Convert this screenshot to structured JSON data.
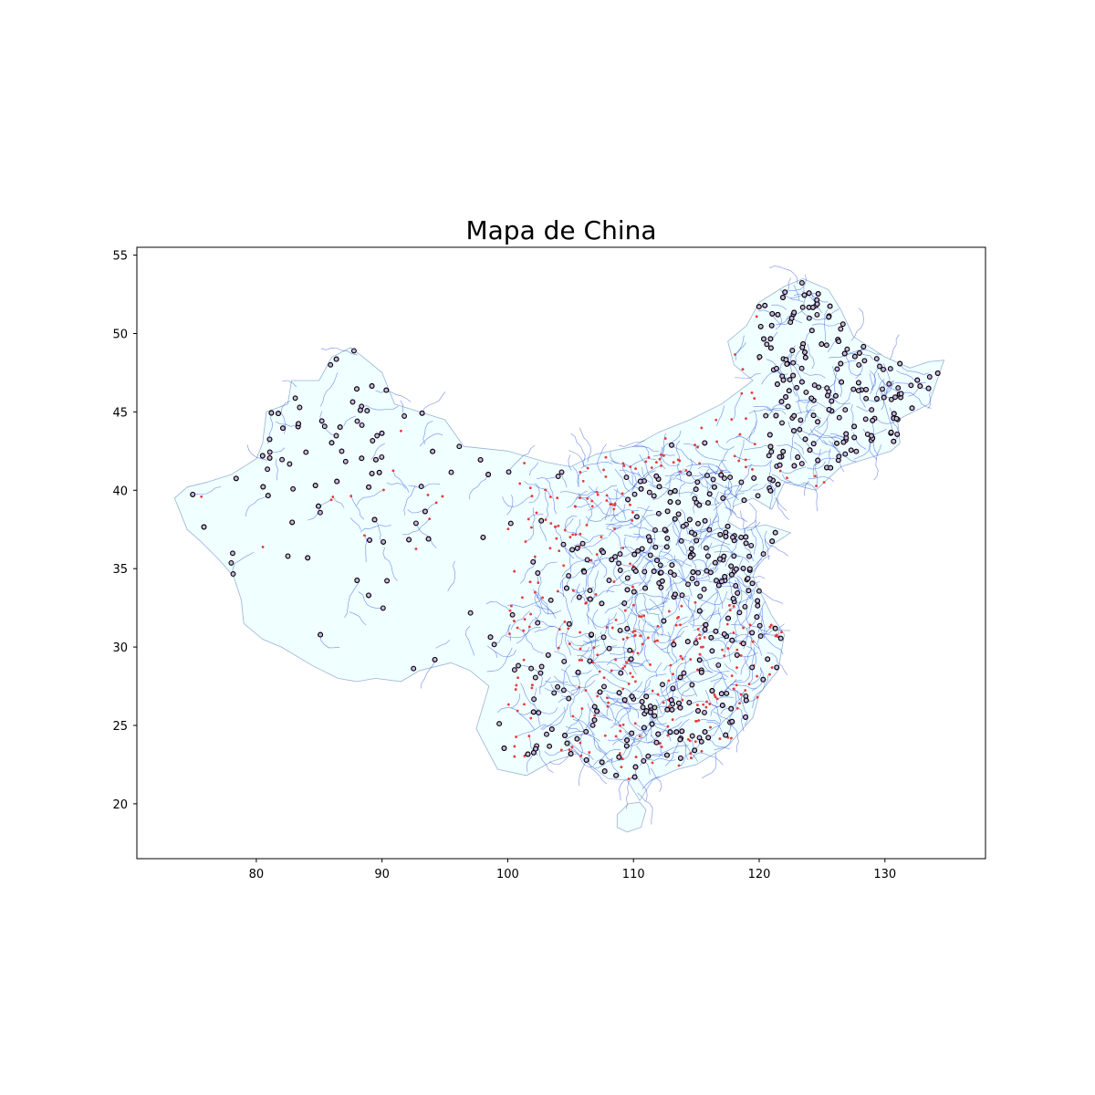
{
  "chart_data": {
    "type": "scatter",
    "title": "Mapa de China",
    "xlabel": "",
    "ylabel": "",
    "xlim": [
      70.5,
      138
    ],
    "ylim": [
      16.5,
      55.5
    ],
    "xticks": [
      80,
      90,
      100,
      110,
      120,
      130
    ],
    "yticks": [
      20,
      25,
      30,
      35,
      40,
      45,
      50,
      55
    ],
    "grid": false,
    "legend": "none",
    "layers": {
      "country_fill": "#f0ffff",
      "country_edge": "#9ab3d6",
      "rivers_color": "#3b5bdb",
      "points_color": "#e63b3b",
      "markers_edge": "#000000"
    },
    "country_outline": [
      [
        73.5,
        39.5
      ],
      [
        74.5,
        40.2
      ],
      [
        76.0,
        40.5
      ],
      [
        78.0,
        41.0
      ],
      [
        80.0,
        42.0
      ],
      [
        80.5,
        43.0
      ],
      [
        80.8,
        45.0
      ],
      [
        82.5,
        45.5
      ],
      [
        82.8,
        47.0
      ],
      [
        85.0,
        47.0
      ],
      [
        86.0,
        48.5
      ],
      [
        87.5,
        49.1
      ],
      [
        88.5,
        48.5
      ],
      [
        90.0,
        47.5
      ],
      [
        91.0,
        45.5
      ],
      [
        93.0,
        45.0
      ],
      [
        95.0,
        44.5
      ],
      [
        96.5,
        42.8
      ],
      [
        100.0,
        42.5
      ],
      [
        103.0,
        41.8
      ],
      [
        105.0,
        41.5
      ],
      [
        107.0,
        42.3
      ],
      [
        110.0,
        42.8
      ],
      [
        112.0,
        43.7
      ],
      [
        114.5,
        44.5
      ],
      [
        117.0,
        45.5
      ],
      [
        119.5,
        47.0
      ],
      [
        118.0,
        48.0
      ],
      [
        117.5,
        49.5
      ],
      [
        119.0,
        50.5
      ],
      [
        120.0,
        52.0
      ],
      [
        122.0,
        53.0
      ],
      [
        123.5,
        53.5
      ],
      [
        125.5,
        52.8
      ],
      [
        126.5,
        51.5
      ],
      [
        127.5,
        49.8
      ],
      [
        130.0,
        48.5
      ],
      [
        132.0,
        47.8
      ],
      [
        133.5,
        48.2
      ],
      [
        134.7,
        48.3
      ],
      [
        133.5,
        45.5
      ],
      [
        131.0,
        44.5
      ],
      [
        131.2,
        43.0
      ],
      [
        130.5,
        42.5
      ],
      [
        128.5,
        42.0
      ],
      [
        126.5,
        41.5
      ],
      [
        124.5,
        40.0
      ],
      [
        122.0,
        40.5
      ],
      [
        121.0,
        38.8
      ],
      [
        119.5,
        39.5
      ],
      [
        118.0,
        39.0
      ],
      [
        117.5,
        38.0
      ],
      [
        118.5,
        37.5
      ],
      [
        120.5,
        37.8
      ],
      [
        122.5,
        37.3
      ],
      [
        121.0,
        36.5
      ],
      [
        120.0,
        35.5
      ],
      [
        119.5,
        34.5
      ],
      [
        121.0,
        32.0
      ],
      [
        122.0,
        30.8
      ],
      [
        121.5,
        28.5
      ],
      [
        120.0,
        27.0
      ],
      [
        119.5,
        25.5
      ],
      [
        117.5,
        23.7
      ],
      [
        115.0,
        22.5
      ],
      [
        113.5,
        22.2
      ],
      [
        111.5,
        21.5
      ],
      [
        110.5,
        20.2
      ],
      [
        109.5,
        21.5
      ],
      [
        108.0,
        21.6
      ],
      [
        106.5,
        22.5
      ],
      [
        105.5,
        23.2
      ],
      [
        103.5,
        22.7
      ],
      [
        101.5,
        21.8
      ],
      [
        99.2,
        22.2
      ],
      [
        98.0,
        24.0
      ],
      [
        97.5,
        24.8
      ],
      [
        98.5,
        27.5
      ],
      [
        97.0,
        28.5
      ],
      [
        95.5,
        29.0
      ],
      [
        93.0,
        28.5
      ],
      [
        91.5,
        27.8
      ],
      [
        89.5,
        28.0
      ],
      [
        88.0,
        27.8
      ],
      [
        86.5,
        28.0
      ],
      [
        84.5,
        28.8
      ],
      [
        82.0,
        30.0
      ],
      [
        80.5,
        30.5
      ],
      [
        79.0,
        31.5
      ],
      [
        78.8,
        33.0
      ],
      [
        78.2,
        34.5
      ],
      [
        77.0,
        35.6
      ],
      [
        75.5,
        36.8
      ],
      [
        74.5,
        37.5
      ],
      [
        73.5,
        39.5
      ]
    ],
    "hainan_outline": [
      [
        108.7,
        19.3
      ],
      [
        109.6,
        20.0
      ],
      [
        110.5,
        20.1
      ],
      [
        111.0,
        19.6
      ],
      [
        110.6,
        18.5
      ],
      [
        109.5,
        18.2
      ],
      [
        108.7,
        18.5
      ],
      [
        108.7,
        19.3
      ]
    ]
  }
}
